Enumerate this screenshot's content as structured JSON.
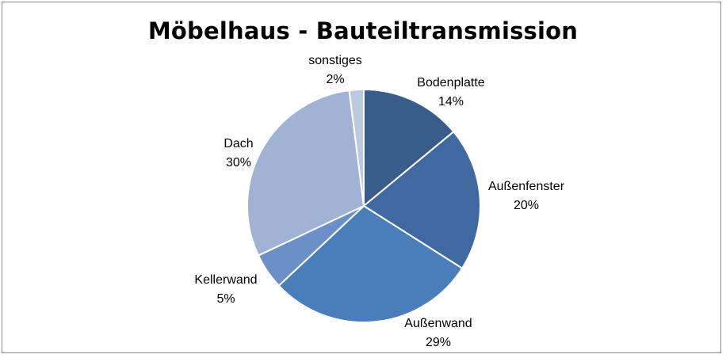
{
  "chart_data": {
    "type": "pie",
    "title": "Möbelhaus - Bauteiltransmission",
    "slices": [
      {
        "name": "Bodenplatte",
        "value": 14,
        "label": "14%",
        "color": "#385d8a"
      },
      {
        "name": "Außenfenster",
        "value": 20,
        "label": "20%",
        "color": "#4069a1"
      },
      {
        "name": "Außenwand",
        "value": 29,
        "label": "29%",
        "color": "#4a7ebb"
      },
      {
        "name": "Kellerwand",
        "value": 5,
        "label": "5%",
        "color": "#6b8fc6"
      },
      {
        "name": "Dach",
        "value": 30,
        "label": "30%",
        "color": "#a1b3d4"
      },
      {
        "name": "sonstiges",
        "value": 2,
        "label": "2%",
        "color": "#bccae0"
      }
    ],
    "start_angle_deg": 0,
    "direction": "clockwise",
    "legend": "none",
    "data_labels": "outside"
  }
}
